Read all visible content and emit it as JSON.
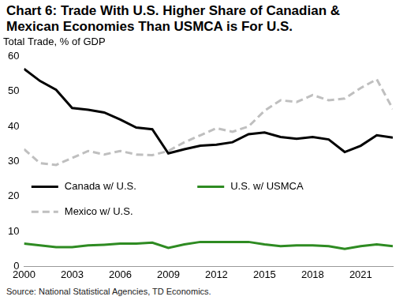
{
  "chart_data": {
    "type": "line",
    "title": [
      "Chart 6: Trade With U.S. Higher Share of Canadian &",
      "Mexican Economies Than USMCA is For U.S."
    ],
    "subtitle": "Total Trade, % of GDP",
    "source": "Source: National Statistical Agencies, TD Economics.",
    "x": [
      2000,
      2001,
      2002,
      2003,
      2004,
      2005,
      2006,
      2007,
      2008,
      2009,
      2010,
      2011,
      2012,
      2013,
      2014,
      2015,
      2016,
      2017,
      2018,
      2019,
      2020,
      2021,
      2022,
      2023
    ],
    "series": [
      {
        "name": "Canada w/ U.S.",
        "color": "#000000",
        "line_style": "solid",
        "marker": "none",
        "values": [
          56.5,
          53,
          50.5,
          45.3,
          44.8,
          44,
          42,
          39.7,
          39.2,
          32.3,
          33.5,
          34.5,
          34.8,
          35.5,
          37.8,
          38.3,
          37,
          36.5,
          37,
          36.3,
          32.7,
          34.5,
          37.5,
          36.8
        ]
      },
      {
        "name": "U.S. w/ USMCA",
        "color": "#2e8b22",
        "line_style": "solid",
        "marker": "none",
        "values": [
          6.5,
          6,
          5.5,
          5.5,
          6,
          6.2,
          6.5,
          6.5,
          6.8,
          5.3,
          6.3,
          7,
          7,
          7,
          7,
          6.3,
          5.8,
          6,
          6,
          5.8,
          5,
          5.8,
          6.3,
          5.8
        ]
      },
      {
        "name": "Mexico w/ U.S.",
        "color": "#bfbfbf",
        "line_style": "dashed",
        "marker": "none",
        "values": [
          33.5,
          29.5,
          29,
          31,
          33,
          32,
          33,
          32,
          31.8,
          33,
          35.5,
          37.5,
          39.5,
          38.5,
          40,
          44.5,
          47.5,
          47,
          49,
          47.5,
          48,
          51,
          53.5,
          45
        ]
      }
    ],
    "xlim": [
      2000,
      2023
    ],
    "xticks": [
      2000,
      2003,
      2006,
      2009,
      2012,
      2015,
      2018,
      2021
    ],
    "ylim": [
      0,
      60
    ],
    "yticks": [
      0,
      10,
      20,
      30,
      40,
      50,
      60
    ],
    "grid": false,
    "legend": "inside"
  }
}
